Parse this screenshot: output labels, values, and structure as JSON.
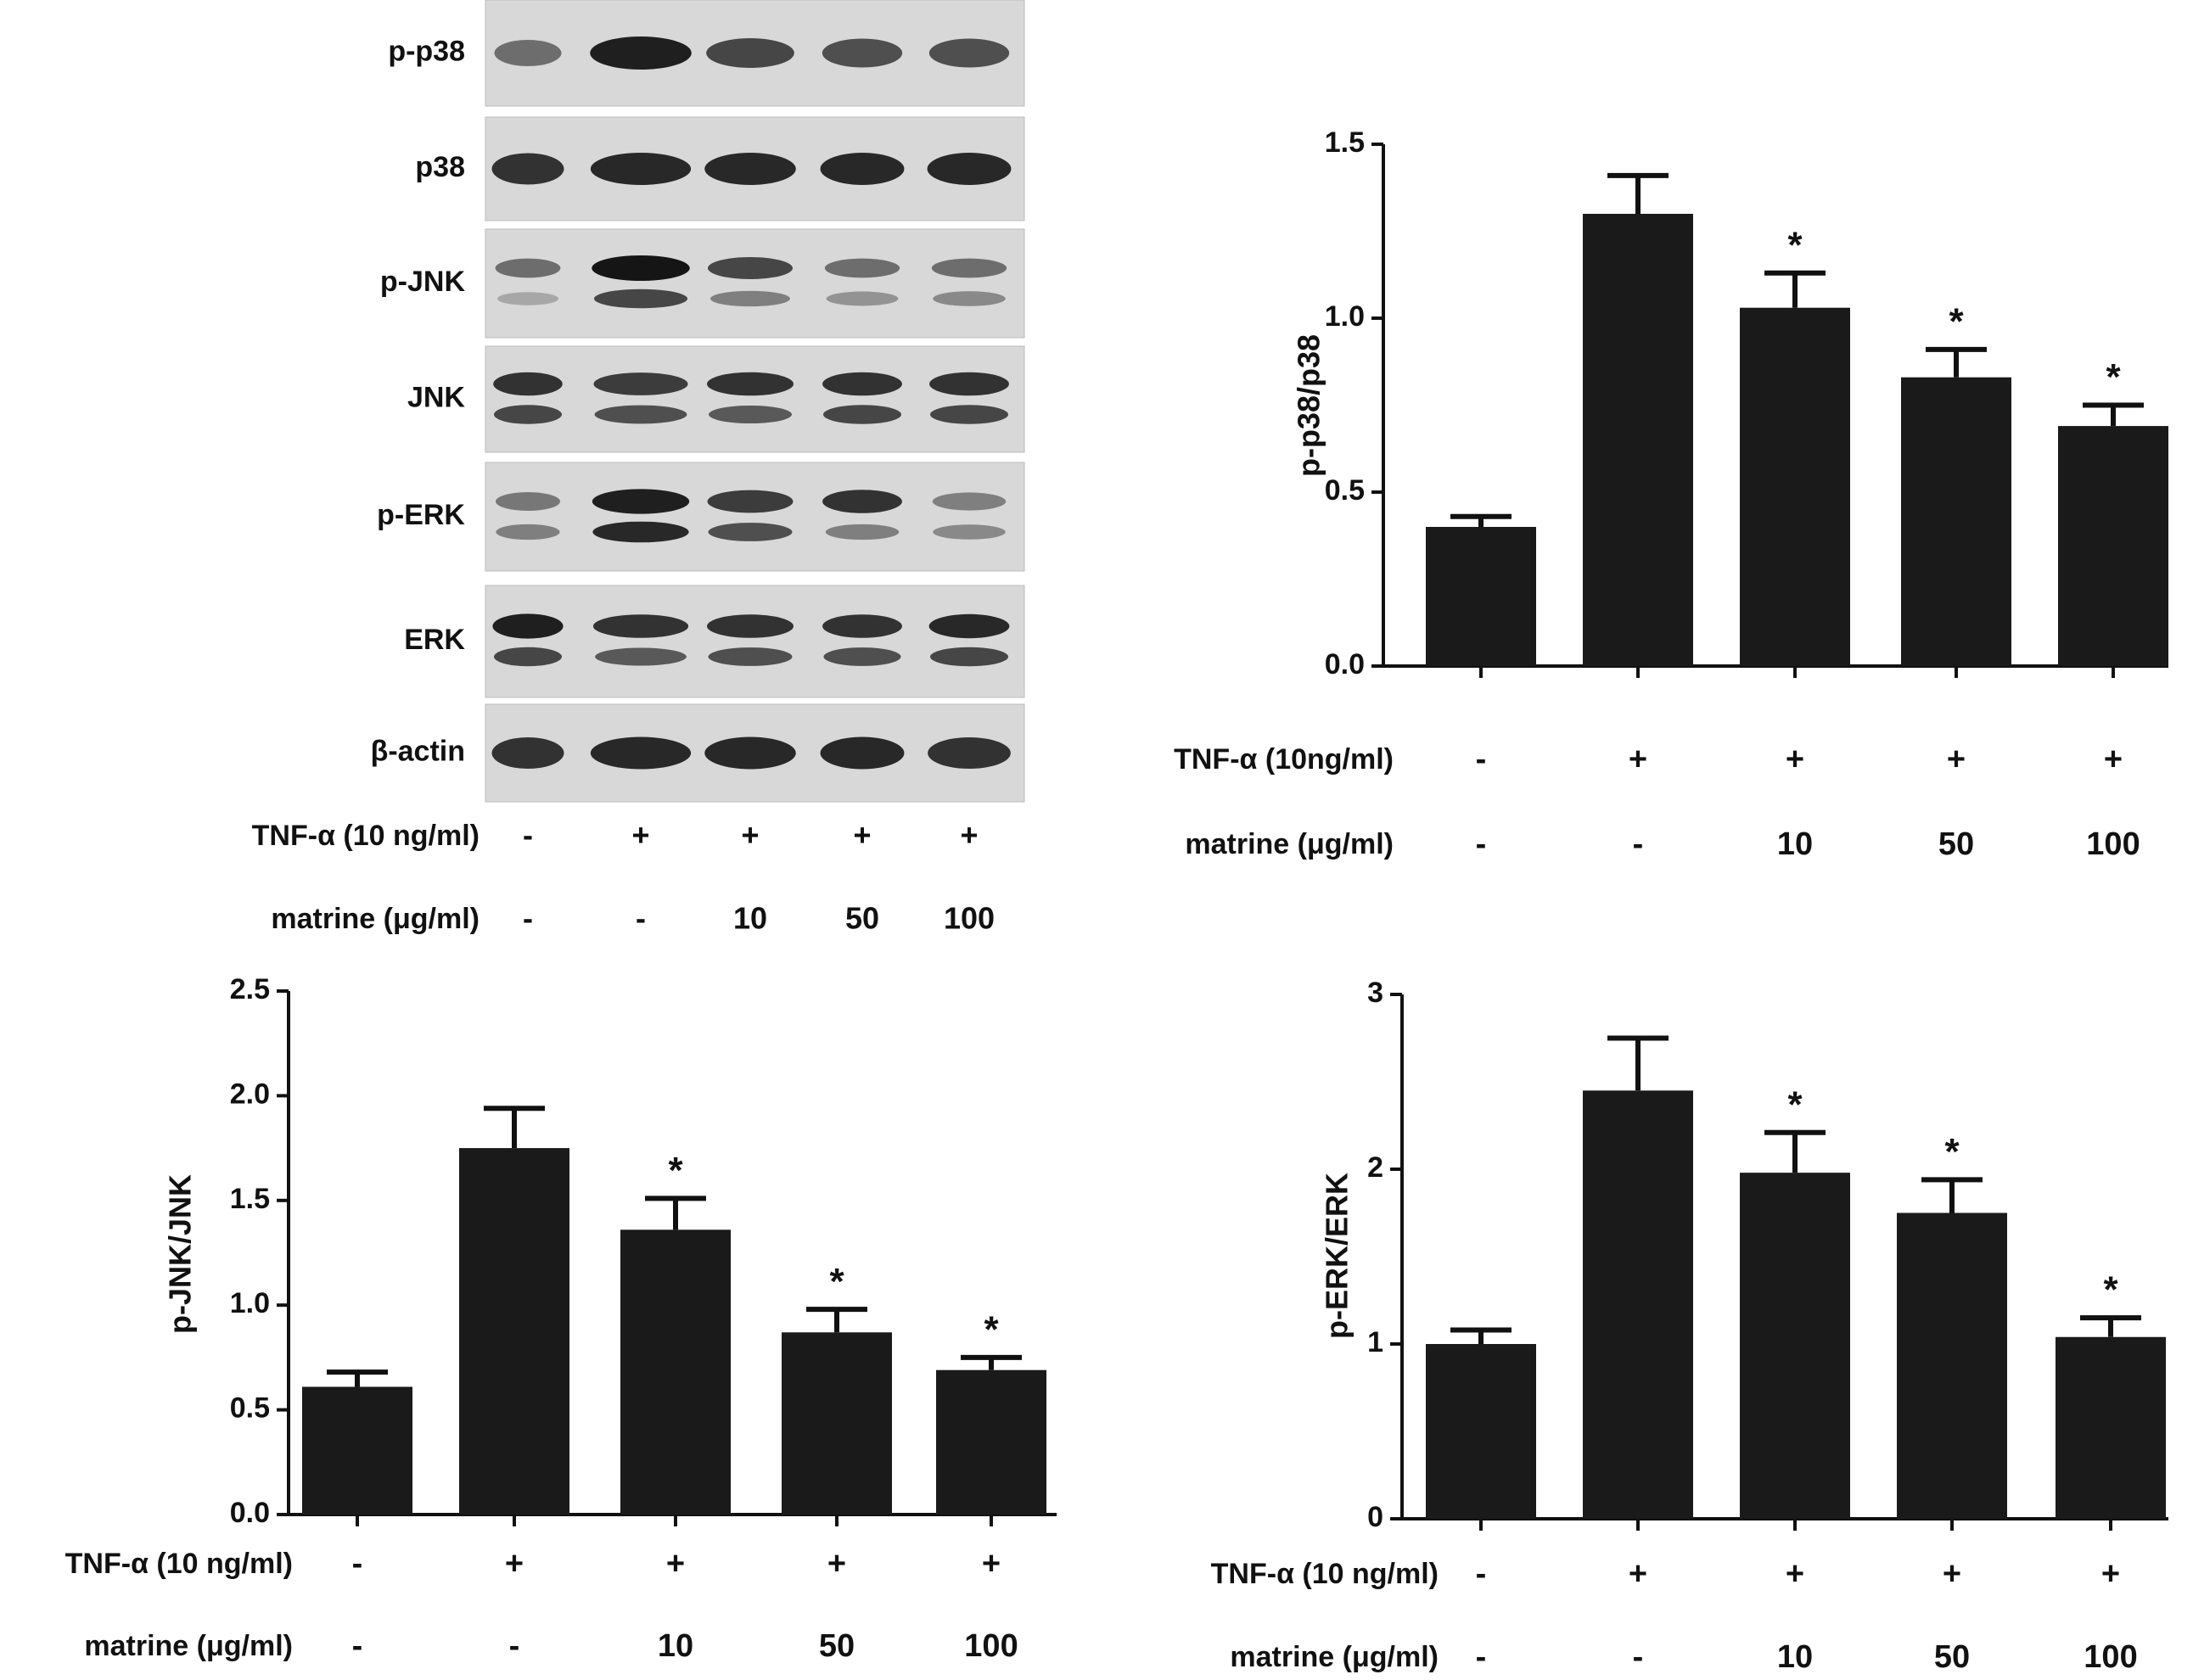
{
  "blot": {
    "rows": [
      {
        "label": "p-p38",
        "bands": 1
      },
      {
        "label": "p38",
        "bands": 1
      },
      {
        "label": "p-JNK",
        "bands": 2
      },
      {
        "label": "JNK",
        "bands": 2
      },
      {
        "label": "p-ERK",
        "bands": 2
      },
      {
        "label": "ERK",
        "bands": 2
      },
      {
        "label": "β-actin",
        "bands": 1
      }
    ],
    "condition_rows": [
      {
        "label": "TNF-α (10 ng/ml)",
        "values": [
          "-",
          "+",
          "+",
          "+",
          "+"
        ]
      },
      {
        "label": "matrine (μg/ml)",
        "values": [
          "-",
          "-",
          "10",
          "50",
          "100"
        ]
      }
    ]
  },
  "chart_data": [
    {
      "type": "bar",
      "ylabel": "p-p38/p38",
      "ylim": [
        0,
        1.5
      ],
      "yticks": [
        "0.0",
        "0.5",
        "1.0",
        "1.5"
      ],
      "values": [
        0.4,
        1.3,
        1.03,
        0.83,
        0.69
      ],
      "errors": [
        0.03,
        0.11,
        0.1,
        0.08,
        0.06
      ],
      "significance": [
        "",
        "",
        "*",
        "*",
        "*"
      ],
      "condition_rows": [
        {
          "label": "TNF-α (10ng/ml)",
          "values": [
            "-",
            "+",
            "+",
            "+",
            "+"
          ]
        },
        {
          "label": "matrine (μg/ml)",
          "values": [
            "-",
            "-",
            "10",
            "50",
            "100"
          ]
        }
      ]
    },
    {
      "type": "bar",
      "ylabel": "p-JNK/JNK",
      "ylim": [
        0,
        2.5
      ],
      "yticks": [
        "0.0",
        "0.5",
        "1.0",
        "1.5",
        "2.0",
        "2.5"
      ],
      "values": [
        0.61,
        1.75,
        1.36,
        0.87,
        0.69
      ],
      "errors": [
        0.07,
        0.19,
        0.15,
        0.11,
        0.06
      ],
      "significance": [
        "",
        "",
        "*",
        "*",
        "*"
      ],
      "condition_rows": [
        {
          "label": "TNF-α (10 ng/ml)",
          "values": [
            "-",
            "+",
            "+",
            "+",
            "+"
          ]
        },
        {
          "label": "matrine (μg/ml)",
          "values": [
            "-",
            "-",
            "10",
            "50",
            "100"
          ]
        }
      ]
    },
    {
      "type": "bar",
      "ylabel": "p-ERK/ERK",
      "ylim": [
        0,
        3
      ],
      "yticks": [
        "0",
        "1",
        "2",
        "3"
      ],
      "values": [
        1.0,
        2.45,
        1.98,
        1.75,
        1.04
      ],
      "errors": [
        0.08,
        0.3,
        0.23,
        0.19,
        0.11
      ],
      "significance": [
        "",
        "",
        "*",
        "*",
        "*"
      ],
      "condition_rows": [
        {
          "label": "TNF-α (10 ng/ml)",
          "values": [
            "-",
            "+",
            "+",
            "+",
            "+"
          ]
        },
        {
          "label": "matrine (μg/ml)",
          "values": [
            "-",
            "-",
            "10",
            "50",
            "100"
          ]
        }
      ]
    }
  ]
}
